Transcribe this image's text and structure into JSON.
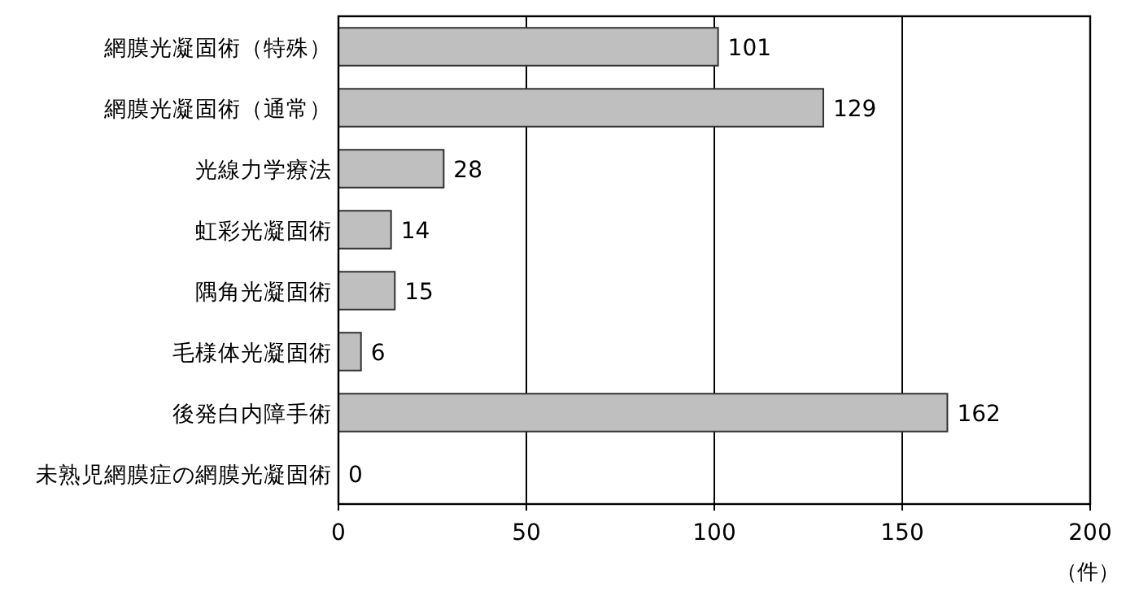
{
  "chart_data": {
    "type": "bar",
    "orientation": "horizontal",
    "categories": [
      "網膜光凝固術（特殊）",
      "網膜光凝固術（通常）",
      "光線力学療法",
      "虹彩光凝固術",
      "隅角光凝固術",
      "毛様体光凝固術",
      "後発白内障手術",
      "未熟児網膜症の網膜光凝固術"
    ],
    "values": [
      101,
      129,
      28,
      14,
      15,
      6,
      162,
      0
    ],
    "color": "#bfbfbf",
    "xlim": [
      0,
      200
    ],
    "xticks": [
      0,
      50,
      100,
      150,
      200
    ],
    "xlabel": "（件）",
    "grid": "x",
    "data_labels": true
  }
}
